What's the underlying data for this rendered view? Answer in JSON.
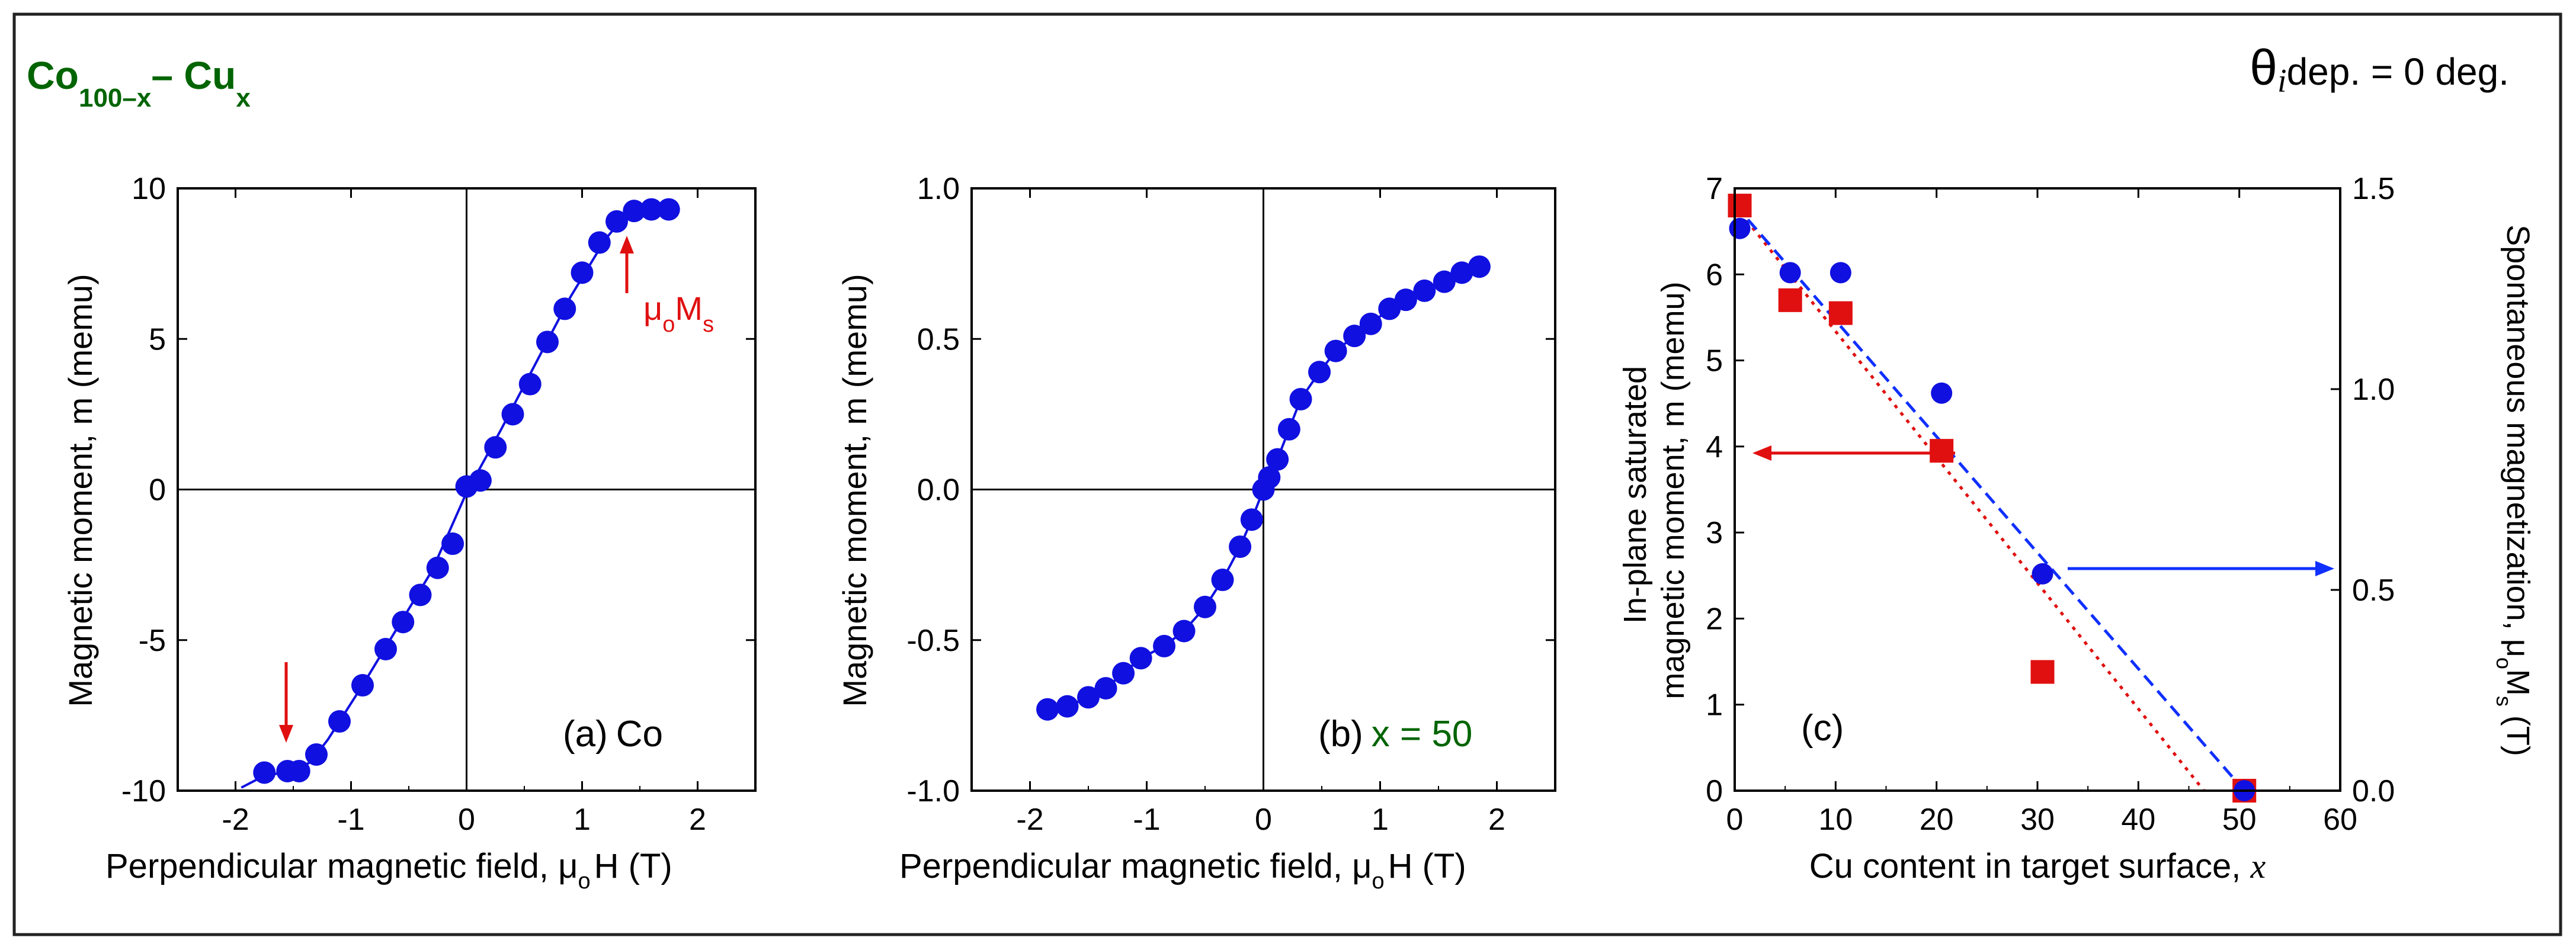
{
  "figure": {
    "title_base": "Co",
    "title_sub1": "100–x",
    "title_dash": "– Cu",
    "title_sub2": "x",
    "title_color": "#006400",
    "condition_theta": "θ",
    "condition_sub": "i",
    "condition_text": "dep. = 0 deg."
  },
  "colors": {
    "points": "#1010e0",
    "red": "#e01010",
    "blue_line": "#1030ff",
    "green": "#006400"
  },
  "chart_data": [
    {
      "type": "line",
      "panel_label": "(a)",
      "panel_note": "Co",
      "xlabel": "Perpendicular magnetic field, μ",
      "xlabel_sub": "o",
      "xlabel_tail": "H (T)",
      "ylabel": "Magnetic moment, m (memu)",
      "xlim": [
        -2.5,
        2.5
      ],
      "ylim": [
        -10,
        10
      ],
      "xticks": [
        -2,
        -1,
        0,
        1,
        2
      ],
      "xtick_labels": [
        "-2",
        "-1",
        "0",
        "1",
        "2"
      ],
      "yticks": [
        -10,
        -5,
        0,
        5,
        10
      ],
      "ytick_labels": [
        "-10",
        "-5",
        "0",
        "5",
        "10"
      ],
      "annotation": {
        "text": "μ",
        "sub": "o",
        "text2": "M",
        "sub2": "s"
      },
      "x": [
        -1.75,
        -1.55,
        -1.45,
        -1.3,
        -1.1,
        -0.9,
        -0.7,
        -0.55,
        -0.4,
        -0.25,
        -0.12,
        0.0,
        0.12,
        0.25,
        0.4,
        0.55,
        0.7,
        0.85,
        1.0,
        1.15,
        1.3,
        1.45,
        1.6,
        1.75
      ],
      "y": [
        -9.4,
        -9.35,
        -9.35,
        -8.8,
        -7.7,
        -6.5,
        -5.3,
        -4.4,
        -3.5,
        -2.6,
        -1.8,
        0.1,
        0.3,
        1.4,
        2.5,
        3.5,
        4.9,
        6.0,
        7.2,
        8.2,
        8.9,
        9.25,
        9.3,
        9.3
      ],
      "curve_x": [
        -1.95,
        -1.75,
        -1.5,
        -1.35,
        -1.2,
        -0.9,
        -0.6,
        -0.3,
        0.0,
        0.3,
        0.6,
        0.9,
        1.2,
        1.35,
        1.5,
        1.7,
        1.8
      ],
      "curve_y": [
        -9.9,
        -9.5,
        -9.35,
        -9.05,
        -8.3,
        -6.5,
        -4.6,
        -2.7,
        -0.1,
        2.0,
        4.2,
        6.4,
        8.3,
        9.0,
        9.25,
        9.3,
        9.3
      ]
    },
    {
      "type": "line",
      "panel_label": "(b)",
      "panel_note": "x = 50",
      "xlabel": "Perpendicular magnetic field, μ",
      "xlabel_sub": "o",
      "xlabel_tail": "H (T)",
      "ylabel": "Magnetic moment, m (memu)",
      "xlim": [
        -2.5,
        2.5
      ],
      "ylim": [
        -1,
        1
      ],
      "xticks": [
        -2,
        -1,
        0,
        1,
        2
      ],
      "xtick_labels": [
        "-2",
        "-1",
        "0",
        "1",
        "2"
      ],
      "yticks": [
        -1,
        -0.5,
        0,
        0.5,
        1
      ],
      "ytick_labels": [
        "-1.0",
        "-0.5",
        "0.0",
        "0.5",
        "1.0"
      ],
      "x": [
        -1.85,
        -1.68,
        -1.5,
        -1.35,
        -1.2,
        -1.05,
        -0.85,
        -0.68,
        -0.5,
        -0.35,
        -0.2,
        -0.1,
        0.0,
        0.05,
        0.12,
        0.22,
        0.32,
        0.48,
        0.62,
        0.78,
        0.92,
        1.08,
        1.22,
        1.38,
        1.55,
        1.7,
        1.85
      ],
      "y": [
        -0.73,
        -0.72,
        -0.69,
        -0.66,
        -0.61,
        -0.56,
        -0.52,
        -0.47,
        -0.39,
        -0.3,
        -0.19,
        -0.1,
        0.0,
        0.04,
        0.1,
        0.2,
        0.3,
        0.39,
        0.46,
        0.51,
        0.55,
        0.6,
        0.63,
        0.66,
        0.69,
        0.72,
        0.74
      ]
    },
    {
      "type": "scatter",
      "panel_label": "(c)",
      "xlabel": "Cu content in target surface, ",
      "xlabel_italic": "x",
      "ylabel_line1": "In-plane saturated",
      "ylabel_line2": "magnetic moment, m (memu)",
      "y2label": "Spontaneous magnetization, μ",
      "y2label_sub": "o",
      "y2label_mid": "M",
      "y2label_sub2": "s",
      "y2label_tail": " (T)",
      "xlim": [
        0,
        60
      ],
      "ylim": [
        0,
        7
      ],
      "y2lim": [
        0,
        1.5
      ],
      "xticks": [
        0,
        10,
        20,
        30,
        40,
        50,
        60
      ],
      "xtick_labels": [
        "0",
        "10",
        "20",
        "30",
        "40",
        "50",
        "60"
      ],
      "yticks": [
        0,
        1,
        2,
        3,
        4,
        5,
        6,
        7
      ],
      "ytick_labels": [
        "0",
        "1",
        "2",
        "3",
        "4",
        "5",
        "6",
        "7"
      ],
      "y2ticks": [
        0,
        0.5,
        1.0,
        1.5
      ],
      "y2tick_labels": [
        "0.0",
        "0.5",
        "1.0",
        "1.5"
      ],
      "series": [
        {
          "name": "In-plane saturated magnetic moment (m)",
          "axis": "left",
          "marker": "square",
          "x": [
            0.5,
            5.5,
            10.5,
            20.5,
            30.5,
            50.5
          ],
          "y": [
            6.8,
            5.7,
            5.55,
            3.95,
            1.38,
            0.0
          ]
        },
        {
          "name": "Spontaneous magnetization (μoMs)",
          "axis": "right",
          "marker": "circle",
          "x": [
            0.5,
            5.5,
            10.5,
            20.5,
            30.5,
            50.5
          ],
          "y": [
            1.4,
            1.29,
            1.29,
            0.99,
            0.54,
            0.0
          ]
        }
      ],
      "fits": [
        {
          "name": "red dotted fit",
          "axis": "left",
          "x": [
            0,
            46.5
          ],
          "y": [
            6.8,
            0
          ]
        },
        {
          "name": "blue dashed fit",
          "axis": "right",
          "x": [
            0,
            50.5
          ],
          "y": [
            1.46,
            0
          ]
        }
      ]
    }
  ]
}
